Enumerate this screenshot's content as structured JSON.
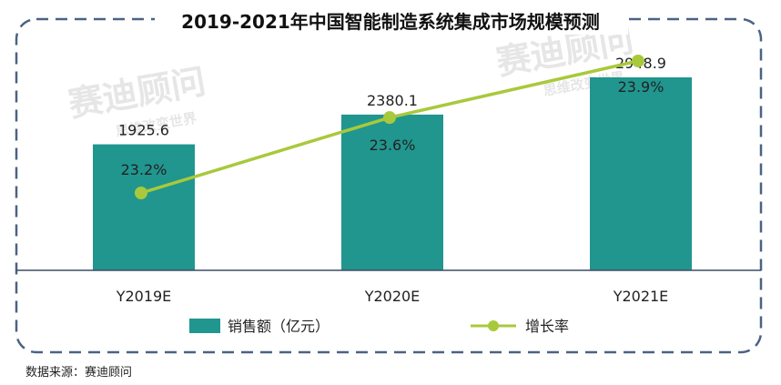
{
  "title": "2019-2021年中国智能制造系统集成市场规模预测",
  "source": "数据来源：赛迪顾问",
  "watermark": {
    "main": "赛迪顾问",
    "sub": "思维改变世界"
  },
  "colors": {
    "bar": "#20968f",
    "line": "#a8c93c",
    "frame": "#4a6384",
    "axis": "#3d4d66"
  },
  "chart_data": {
    "type": "bar",
    "categories": [
      "Y2019E",
      "Y2020E",
      "Y2021E"
    ],
    "series": [
      {
        "name": "销售额（亿元）",
        "type": "bar",
        "values": [
          1925.6,
          2380.1,
          2948.9
        ],
        "labels": [
          "1925.6",
          "2380.1",
          "2948.9"
        ]
      },
      {
        "name": "增长率",
        "type": "line",
        "values": [
          23.2,
          23.6,
          23.9
        ],
        "labels": [
          "23.2%",
          "23.6%",
          "23.9%"
        ]
      }
    ],
    "legend": "bottom"
  }
}
